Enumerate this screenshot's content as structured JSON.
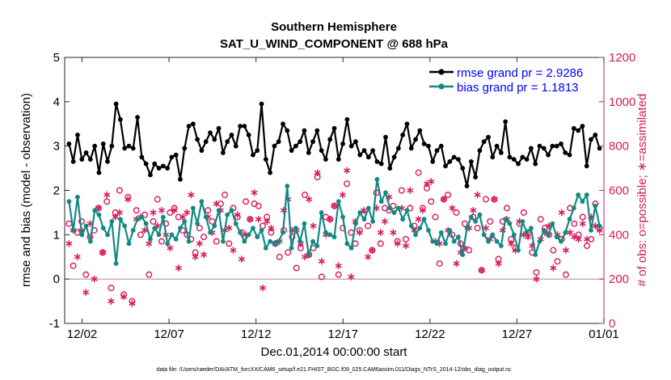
{
  "chart_data": {
    "type": "line",
    "title": "Southern Hemisphere",
    "subtitle": "SAT_U_WIND_COMPONENT @ 688 hPa",
    "xlabel": "Dec.01,2014 00:00:00 start",
    "ylabel_left": "rmse and bias (model - observation)",
    "ylabel_right": "# of obs: o=possible; ∗=assimilated",
    "footnote": "data file: /Users/raeder/DAI/ATM_forcXX/CAM6_setup/f.e21.FHIST_BGC.f09_025.CAM6assim.011/Diags_NTrS_2014-12/obs_diag_output.nc",
    "x_range_days": [
      0,
      31
    ],
    "x_ticks": [
      {
        "day": 1,
        "label": "12/02"
      },
      {
        "day": 6,
        "label": "12/07"
      },
      {
        "day": 11,
        "label": "12/12"
      },
      {
        "day": 16,
        "label": "12/17"
      },
      {
        "day": 21,
        "label": "12/22"
      },
      {
        "day": 26,
        "label": "12/27"
      },
      {
        "day": 31,
        "label": "01/01"
      }
    ],
    "ylim_left": [
      -1,
      5
    ],
    "yticks_left": [
      "-1",
      "0",
      "1",
      "2",
      "3",
      "4",
      "5"
    ],
    "ylim_right": [
      0,
      1200
    ],
    "yticks_right": [
      "0",
      "200",
      "400",
      "600",
      "800",
      "1000",
      "1200"
    ],
    "colors": {
      "rmse": "#000000",
      "bias": "#138983",
      "obs": "#d8195b",
      "zero_line": "#c09090"
    },
    "legend_position": "top-right",
    "series": [
      {
        "name": "rmse grand pr = 2.9286",
        "axis": "left",
        "values": [
          3.05,
          2.65,
          3.25,
          2.7,
          2.85,
          2.7,
          3.0,
          2.4,
          3.05,
          2.65,
          3.0,
          3.95,
          3.6,
          2.95,
          3.0,
          2.95,
          3.65,
          2.75,
          2.6,
          2.35,
          2.6,
          2.5,
          2.55,
          2.5,
          2.75,
          2.8,
          2.25,
          2.95,
          3.45,
          3.5,
          3.15,
          2.9,
          3.1,
          3.3,
          3.15,
          3.4,
          2.85,
          3.1,
          3.25,
          3.0,
          3.45,
          3.45,
          3.25,
          2.8,
          2.9,
          3.95,
          2.7,
          2.4,
          3.0,
          3.1,
          3.5,
          3.35,
          2.9,
          3.0,
          3.1,
          3.35,
          2.85,
          3.1,
          3.35,
          2.9,
          2.7,
          3.15,
          3.4,
          2.7,
          3.05,
          3.6,
          3.0,
          3.1,
          2.8,
          2.9,
          2.75,
          2.9,
          2.65,
          2.6,
          3.2,
          2.5,
          2.75,
          2.95,
          3.25,
          3.5,
          2.95,
          3.15,
          3.35,
          3.05,
          3.0,
          2.65,
          2.9,
          3.0,
          2.55,
          2.65,
          2.75,
          2.7,
          2.5,
          2.1,
          2.65,
          2.3,
          2.9,
          3.1,
          3.2,
          2.75,
          3.0,
          2.85,
          3.55,
          2.75,
          2.7,
          2.6,
          2.75,
          2.7,
          2.95,
          2.6,
          3.0,
          2.95,
          2.8,
          3.0,
          3.0,
          3.05,
          2.85,
          2.8,
          3.4,
          3.35,
          3.45,
          2.55,
          3.15,
          3.25,
          2.95
        ]
      },
      {
        "name": "bias grand pr = 1.1813",
        "axis": "left",
        "values": [
          1.75,
          1.1,
          1.85,
          1.0,
          1.2,
          0.85,
          1.55,
          1.45,
          1.15,
          1.0,
          1.3,
          0.35,
          1.35,
          1.2,
          0.8,
          1.1,
          1.35,
          1.4,
          1.25,
          0.9,
          1.15,
          1.0,
          1.4,
          0.8,
          1.0,
          0.9,
          1.15,
          1.3,
          0.85,
          1.6,
          1.25,
          1.75,
          1.4,
          1.05,
          1.2,
          1.55,
          0.85,
          1.45,
          1.55,
          1.25,
          1.05,
          0.85,
          1.0,
          1.15,
          0.95,
          1.1,
          0.7,
          0.85,
          0.8,
          0.85,
          1.05,
          2.1,
          0.7,
          1.15,
          0.85,
          1.25,
          0.55,
          0.85,
          0.75,
          1.5,
          1.05,
          1.0,
          0.95,
          1.75,
          1.4,
          0.8,
          0.7,
          1.25,
          1.5,
          1.35,
          1.6,
          1.3,
          2.25,
          1.75,
          1.95,
          1.6,
          1.5,
          1.6,
          1.35,
          1.55,
          1.2,
          1.0,
          1.15,
          1.35,
          1.1,
          0.85,
          0.8,
          1.05,
          0.8,
          1.1,
          0.85,
          0.95,
          0.55,
          1.15,
          1.4,
          1.3,
          1.45,
          1.0,
          0.85,
          1.0,
          0.85,
          0.75,
          1.35,
          1.25,
          1.0,
          0.65,
          1.3,
          1.05,
          1.15,
          0.55,
          0.85,
          1.1,
          1.0,
          1.25,
          0.95,
          0.85,
          1.05,
          1.35,
          1.6,
          1.9,
          1.75,
          1.9,
          1.1,
          1.65,
          1.2
        ]
      },
      {
        "name": "possible",
        "axis": "right",
        "values": [
          450,
          260,
          410,
          460,
          220,
          390,
          420,
          520,
          320,
          550,
          160,
          500,
          600,
          130,
          570,
          100,
          510,
          400,
          490,
          220,
          460,
          560,
          370,
          450,
          500,
          520,
          480,
          420,
          400,
          380,
          320,
          430,
          390,
          510,
          460,
          370,
          540,
          580,
          360,
          520,
          480,
          410,
          550,
          470,
          540,
          530,
          440,
          480,
          410,
          360,
          300,
          420,
          320,
          390,
          250,
          340,
          580,
          310,
          340,
          660,
          210,
          480,
          470,
          530,
          220,
          430,
          630,
          410,
          360,
          420,
          490,
          440,
          330,
          590,
          360,
          520,
          510,
          530,
          370,
          600,
          380,
          520,
          440,
          680,
          520,
          610,
          550,
          480,
          270,
          560,
          580,
          400,
          500,
          360,
          450,
          330,
          480,
          430,
          240,
          560,
          460,
          560,
          290,
          460,
          520,
          380,
          340,
          450,
          500,
          410,
          320,
          230,
          470,
          430,
          400,
          330,
          280,
          380,
          220,
          520,
          450,
          400,
          480,
          350,
          380,
          540,
          430
        ]
      },
      {
        "name": "assimilated",
        "axis": "right",
        "values": [
          360,
          420,
          300,
          420,
          140,
          450,
          200,
          520,
          320,
          580,
          100,
          480,
          500,
          120,
          560,
          90,
          470,
          480,
          420,
          360,
          500,
          440,
          510,
          400,
          340,
          510,
          250,
          480,
          500,
          580,
          300,
          360,
          310,
          480,
          410,
          540,
          510,
          420,
          430,
          330,
          490,
          290,
          400,
          470,
          590,
          470,
          160,
          460,
          430,
          360,
          370,
          510,
          560,
          420,
          420,
          360,
          300,
          560,
          440,
          680,
          280,
          400,
          470,
          530,
          260,
          580,
          690,
          210,
          460,
          410,
          510,
          300,
          330,
          520,
          410,
          460,
          570,
          410,
          360,
          520,
          350,
          600,
          420,
          470,
          510,
          630,
          640,
          370,
          360,
          560,
          420,
          520,
          270,
          320,
          340,
          430,
          510,
          580,
          240,
          430,
          380,
          560,
          270,
          420,
          470,
          360,
          330,
          460,
          400,
          390,
          350,
          200,
          380,
          410,
          440,
          250,
          400,
          500,
          330,
          410,
          390,
          380,
          450,
          380,
          480,
          440,
          420
        ]
      }
    ]
  }
}
